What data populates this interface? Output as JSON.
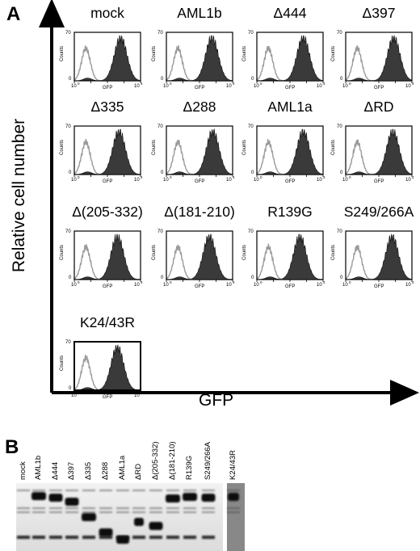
{
  "panel_a": {
    "letter": "A",
    "y_axis_label": "Relative cell number",
    "x_axis_label": "GFP",
    "histogram_axes": {
      "y_label": "Counts",
      "y_max": "70",
      "y_min": "0",
      "x_label": "GFP",
      "x_min": "10",
      "x_max": "10",
      "x_min_exp": "0",
      "x_max_exp": "4"
    },
    "conditions": [
      {
        "label": "mock",
        "gfp_peak_log": 2.8
      },
      {
        "label": "AML1b",
        "gfp_peak_log": 2.75
      },
      {
        "label": "Δ444",
        "gfp_peak_log": 2.8
      },
      {
        "label": "Δ397",
        "gfp_peak_log": 2.9
      },
      {
        "label": "Δ335",
        "gfp_peak_log": 2.7
      },
      {
        "label": "Δ288",
        "gfp_peak_log": 2.8
      },
      {
        "label": "AML1a",
        "gfp_peak_log": 2.8
      },
      {
        "label": "ΔRD",
        "gfp_peak_log": 2.85
      },
      {
        "label": "Δ(205-332)",
        "gfp_peak_log": 2.6
      },
      {
        "label": "Δ(181-210)",
        "gfp_peak_log": 2.6
      },
      {
        "label": "R139G",
        "gfp_peak_log": 2.6
      },
      {
        "label": "S249/266A",
        "gfp_peak_log": 2.8
      },
      {
        "label": "K24/43R",
        "gfp_peak_log": 2.6
      }
    ],
    "control_peak_log": 0.7
  },
  "panel_b": {
    "letter": "B",
    "lanes": [
      "mock",
      "AML1b",
      "Δ444",
      "Δ397",
      "Δ335",
      "Δ288",
      "AML1a",
      "ΔRD",
      "Δ(205-332)",
      "Δ(181-210)",
      "R139G",
      "S249/266A",
      "K24/43R"
    ]
  }
}
